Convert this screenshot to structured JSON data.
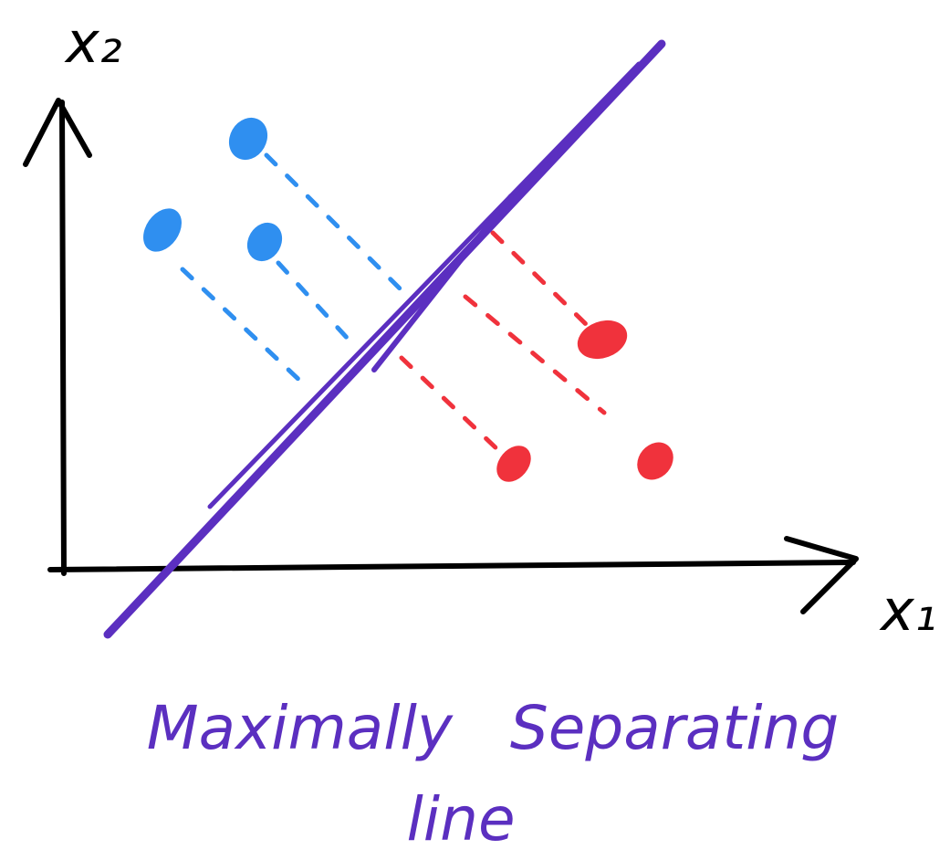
{
  "axes": {
    "y_label": "x₂",
    "x_label": "x₁"
  },
  "caption": {
    "lines": [
      "Maximally   Separating",
      "line"
    ]
  }
}
